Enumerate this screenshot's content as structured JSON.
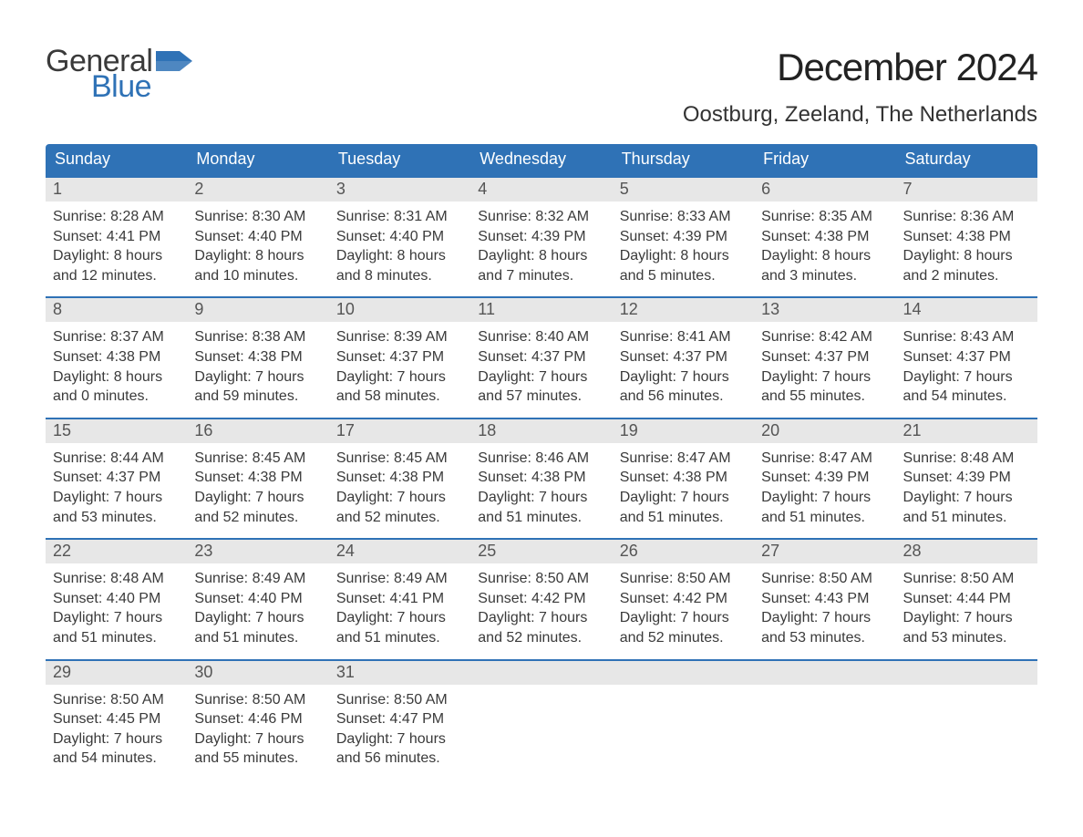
{
  "brand": {
    "word1": "General",
    "word2": "Blue",
    "flag_color": "#2f72b6"
  },
  "title": "December 2024",
  "location": "Oostburg, Zeeland, The Netherlands",
  "colors": {
    "header_bg": "#2f72b6",
    "header_text": "#ffffff",
    "daynum_bg": "#e7e7e7",
    "week_border": "#2f72b6",
    "body_text": "#3a3a3a",
    "page_bg": "#ffffff"
  },
  "typography": {
    "title_fontsize": 42,
    "location_fontsize": 24,
    "dow_fontsize": 18,
    "daynum_fontsize": 18,
    "body_fontsize": 16
  },
  "days_of_week": [
    "Sunday",
    "Monday",
    "Tuesday",
    "Wednesday",
    "Thursday",
    "Friday",
    "Saturday"
  ],
  "weeks": [
    [
      {
        "n": "1",
        "sunrise": "Sunrise: 8:28 AM",
        "sunset": "Sunset: 4:41 PM",
        "dl1": "Daylight: 8 hours",
        "dl2": "and 12 minutes."
      },
      {
        "n": "2",
        "sunrise": "Sunrise: 8:30 AM",
        "sunset": "Sunset: 4:40 PM",
        "dl1": "Daylight: 8 hours",
        "dl2": "and 10 minutes."
      },
      {
        "n": "3",
        "sunrise": "Sunrise: 8:31 AM",
        "sunset": "Sunset: 4:40 PM",
        "dl1": "Daylight: 8 hours",
        "dl2": "and 8 minutes."
      },
      {
        "n": "4",
        "sunrise": "Sunrise: 8:32 AM",
        "sunset": "Sunset: 4:39 PM",
        "dl1": "Daylight: 8 hours",
        "dl2": "and 7 minutes."
      },
      {
        "n": "5",
        "sunrise": "Sunrise: 8:33 AM",
        "sunset": "Sunset: 4:39 PM",
        "dl1": "Daylight: 8 hours",
        "dl2": "and 5 minutes."
      },
      {
        "n": "6",
        "sunrise": "Sunrise: 8:35 AM",
        "sunset": "Sunset: 4:38 PM",
        "dl1": "Daylight: 8 hours",
        "dl2": "and 3 minutes."
      },
      {
        "n": "7",
        "sunrise": "Sunrise: 8:36 AM",
        "sunset": "Sunset: 4:38 PM",
        "dl1": "Daylight: 8 hours",
        "dl2": "and 2 minutes."
      }
    ],
    [
      {
        "n": "8",
        "sunrise": "Sunrise: 8:37 AM",
        "sunset": "Sunset: 4:38 PM",
        "dl1": "Daylight: 8 hours",
        "dl2": "and 0 minutes."
      },
      {
        "n": "9",
        "sunrise": "Sunrise: 8:38 AM",
        "sunset": "Sunset: 4:38 PM",
        "dl1": "Daylight: 7 hours",
        "dl2": "and 59 minutes."
      },
      {
        "n": "10",
        "sunrise": "Sunrise: 8:39 AM",
        "sunset": "Sunset: 4:37 PM",
        "dl1": "Daylight: 7 hours",
        "dl2": "and 58 minutes."
      },
      {
        "n": "11",
        "sunrise": "Sunrise: 8:40 AM",
        "sunset": "Sunset: 4:37 PM",
        "dl1": "Daylight: 7 hours",
        "dl2": "and 57 minutes."
      },
      {
        "n": "12",
        "sunrise": "Sunrise: 8:41 AM",
        "sunset": "Sunset: 4:37 PM",
        "dl1": "Daylight: 7 hours",
        "dl2": "and 56 minutes."
      },
      {
        "n": "13",
        "sunrise": "Sunrise: 8:42 AM",
        "sunset": "Sunset: 4:37 PM",
        "dl1": "Daylight: 7 hours",
        "dl2": "and 55 minutes."
      },
      {
        "n": "14",
        "sunrise": "Sunrise: 8:43 AM",
        "sunset": "Sunset: 4:37 PM",
        "dl1": "Daylight: 7 hours",
        "dl2": "and 54 minutes."
      }
    ],
    [
      {
        "n": "15",
        "sunrise": "Sunrise: 8:44 AM",
        "sunset": "Sunset: 4:37 PM",
        "dl1": "Daylight: 7 hours",
        "dl2": "and 53 minutes."
      },
      {
        "n": "16",
        "sunrise": "Sunrise: 8:45 AM",
        "sunset": "Sunset: 4:38 PM",
        "dl1": "Daylight: 7 hours",
        "dl2": "and 52 minutes."
      },
      {
        "n": "17",
        "sunrise": "Sunrise: 8:45 AM",
        "sunset": "Sunset: 4:38 PM",
        "dl1": "Daylight: 7 hours",
        "dl2": "and 52 minutes."
      },
      {
        "n": "18",
        "sunrise": "Sunrise: 8:46 AM",
        "sunset": "Sunset: 4:38 PM",
        "dl1": "Daylight: 7 hours",
        "dl2": "and 51 minutes."
      },
      {
        "n": "19",
        "sunrise": "Sunrise: 8:47 AM",
        "sunset": "Sunset: 4:38 PM",
        "dl1": "Daylight: 7 hours",
        "dl2": "and 51 minutes."
      },
      {
        "n": "20",
        "sunrise": "Sunrise: 8:47 AM",
        "sunset": "Sunset: 4:39 PM",
        "dl1": "Daylight: 7 hours",
        "dl2": "and 51 minutes."
      },
      {
        "n": "21",
        "sunrise": "Sunrise: 8:48 AM",
        "sunset": "Sunset: 4:39 PM",
        "dl1": "Daylight: 7 hours",
        "dl2": "and 51 minutes."
      }
    ],
    [
      {
        "n": "22",
        "sunrise": "Sunrise: 8:48 AM",
        "sunset": "Sunset: 4:40 PM",
        "dl1": "Daylight: 7 hours",
        "dl2": "and 51 minutes."
      },
      {
        "n": "23",
        "sunrise": "Sunrise: 8:49 AM",
        "sunset": "Sunset: 4:40 PM",
        "dl1": "Daylight: 7 hours",
        "dl2": "and 51 minutes."
      },
      {
        "n": "24",
        "sunrise": "Sunrise: 8:49 AM",
        "sunset": "Sunset: 4:41 PM",
        "dl1": "Daylight: 7 hours",
        "dl2": "and 51 minutes."
      },
      {
        "n": "25",
        "sunrise": "Sunrise: 8:50 AM",
        "sunset": "Sunset: 4:42 PM",
        "dl1": "Daylight: 7 hours",
        "dl2": "and 52 minutes."
      },
      {
        "n": "26",
        "sunrise": "Sunrise: 8:50 AM",
        "sunset": "Sunset: 4:42 PM",
        "dl1": "Daylight: 7 hours",
        "dl2": "and 52 minutes."
      },
      {
        "n": "27",
        "sunrise": "Sunrise: 8:50 AM",
        "sunset": "Sunset: 4:43 PM",
        "dl1": "Daylight: 7 hours",
        "dl2": "and 53 minutes."
      },
      {
        "n": "28",
        "sunrise": "Sunrise: 8:50 AM",
        "sunset": "Sunset: 4:44 PM",
        "dl1": "Daylight: 7 hours",
        "dl2": "and 53 minutes."
      }
    ],
    [
      {
        "n": "29",
        "sunrise": "Sunrise: 8:50 AM",
        "sunset": "Sunset: 4:45 PM",
        "dl1": "Daylight: 7 hours",
        "dl2": "and 54 minutes."
      },
      {
        "n": "30",
        "sunrise": "Sunrise: 8:50 AM",
        "sunset": "Sunset: 4:46 PM",
        "dl1": "Daylight: 7 hours",
        "dl2": "and 55 minutes."
      },
      {
        "n": "31",
        "sunrise": "Sunrise: 8:50 AM",
        "sunset": "Sunset: 4:47 PM",
        "dl1": "Daylight: 7 hours",
        "dl2": "and 56 minutes."
      },
      {
        "n": "",
        "sunrise": "",
        "sunset": "",
        "dl1": "",
        "dl2": ""
      },
      {
        "n": "",
        "sunrise": "",
        "sunset": "",
        "dl1": "",
        "dl2": ""
      },
      {
        "n": "",
        "sunrise": "",
        "sunset": "",
        "dl1": "",
        "dl2": ""
      },
      {
        "n": "",
        "sunrise": "",
        "sunset": "",
        "dl1": "",
        "dl2": ""
      }
    ]
  ]
}
